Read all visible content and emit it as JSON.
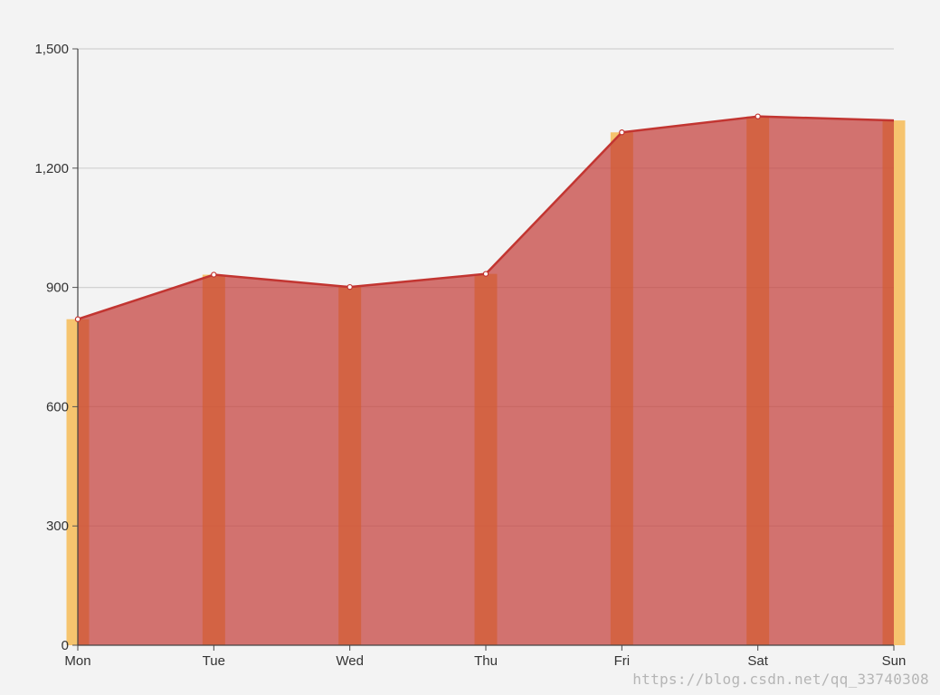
{
  "chart_data": {
    "type": "bar",
    "categories": [
      "Mon",
      "Tue",
      "Wed",
      "Thu",
      "Fri",
      "Sat",
      "Sun"
    ],
    "series": [
      {
        "type": "bar",
        "values": [
          820,
          932,
          901,
          934,
          1290,
          1330,
          1320
        ],
        "color": "#f6b23a"
      },
      {
        "type": "area",
        "values": [
          820,
          932,
          901,
          934,
          1290,
          1330,
          1320
        ],
        "color": "#c23531"
      }
    ],
    "ylim": [
      0,
      1500
    ],
    "yticks": [
      0,
      300,
      600,
      900,
      1200,
      1500
    ],
    "ytick_labels": [
      "0",
      "300",
      "600",
      "900",
      "1,200",
      "1,500"
    ],
    "grid": true,
    "title": "",
    "xlabel": "",
    "ylabel": ""
  },
  "watermark": "https://blog.csdn.net/qq_33740308"
}
